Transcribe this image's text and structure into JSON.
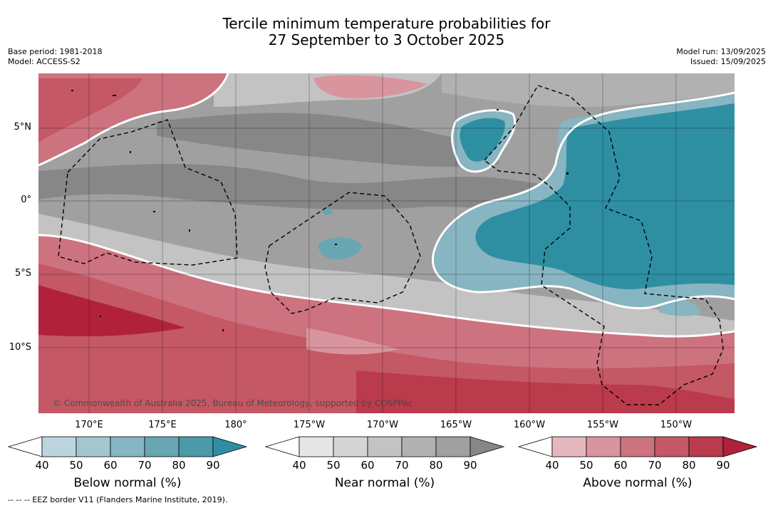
{
  "title_line1": "Tercile minimum temperature probabilities for",
  "title_line2": "27 September to 3 October 2025",
  "base_period": "Base period: 1981-2018",
  "model": "Model: ACCESS-S2",
  "model_run": "Model run: 13/09/2025",
  "issued": "Issued: 15/09/2025",
  "copyright": "© Commonwealth of Australia 2025, Bureau of Meteorology, supported by COSPPac",
  "latitude_labels": [
    "5°N",
    "0°",
    "5°S",
    "10°S"
  ],
  "longitude_labels": [
    "170°E",
    "175°E",
    "180°",
    "175°W",
    "170°W",
    "165°W",
    "160°W",
    "155°W",
    "150°W"
  ],
  "colorbars": [
    {
      "title": "Below normal (%)",
      "ticks": [
        "40",
        "50",
        "60",
        "70",
        "80",
        "90"
      ],
      "colors": [
        "#ffffff",
        "#bcd4dc",
        "#a4c6cf",
        "#87b5c1",
        "#68a6b3",
        "#4a9aa8",
        "#2e8fa3"
      ]
    },
    {
      "title": "Near normal (%)",
      "ticks": [
        "40",
        "50",
        "60",
        "70",
        "80",
        "90"
      ],
      "colors": [
        "#ffffff",
        "#e6e6e6",
        "#d5d5d5",
        "#c3c3c3",
        "#b1b1b1",
        "#a0a0a0",
        "#878787"
      ]
    },
    {
      "title": "Above normal (%)",
      "ticks": [
        "40",
        "50",
        "60",
        "70",
        "80",
        "90"
      ],
      "colors": [
        "#ffffff",
        "#e4b8be",
        "#d8959e",
        "#cc737f",
        "#c45865",
        "#ba3b4b",
        "#b1223a"
      ]
    }
  ],
  "footnote": "-- -- -- EEZ border V11 (Flanders Marine Institute, 2019)."
}
